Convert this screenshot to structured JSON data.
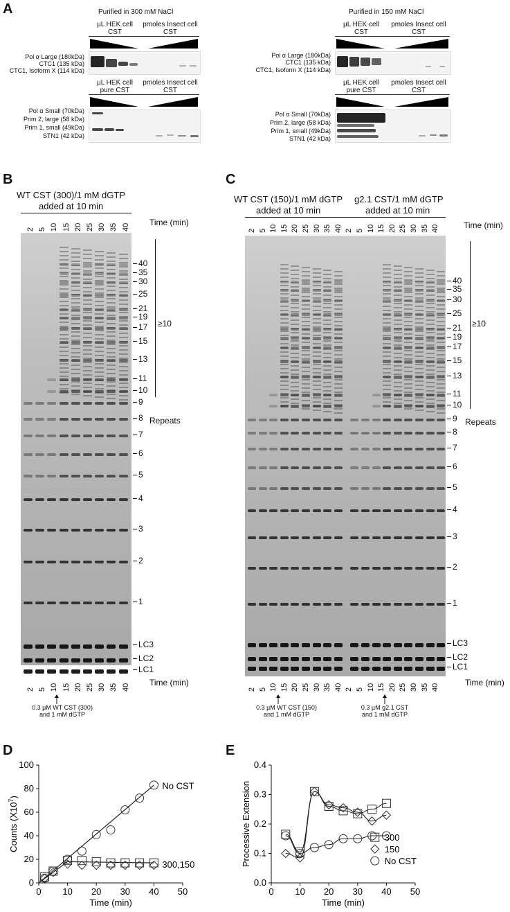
{
  "panels": {
    "A": "A",
    "B": "B",
    "C": "C",
    "D": "D",
    "E": "E"
  },
  "panelA": {
    "left_title": "Purified in 300 mM NaCl",
    "right_title": "Purified in 150 mM NaCl",
    "hek_label_top": "µL HEK cell\nCST",
    "insect_label": "pmoles Insect cell\nCST",
    "hek_label_bottom": "µL HEK cell\npure CST",
    "top_bands": [
      "Pol α Large (180kDa)",
      "CTC1 (135 kDa)",
      "CTC1, Isoform X (114 kDa)"
    ],
    "bottom_bands": [
      "Pol α Small (70kDa)",
      "Prim 2, large (58 kDa)",
      "Prim 1, small (49kDa)",
      "STN1 (42 kDa)"
    ]
  },
  "panelB": {
    "title_line1": "WT CST (300)/1 mM dGTP",
    "title_line2": "added at 10 min",
    "time_label": "Time (min)",
    "lanes": [
      "2",
      "5",
      "10",
      "15",
      "20",
      "25",
      "30",
      "35",
      "40"
    ],
    "size_labels": [
      "40",
      "35",
      "30",
      "25",
      "21",
      "19",
      "17",
      "15",
      "13",
      "11",
      "10",
      "9",
      "8",
      "7",
      "6",
      "5",
      "4",
      "3",
      "2",
      "1",
      "LC3",
      "LC2",
      "LC1"
    ],
    "bracket_label": "≥10",
    "repeats_label": "Repeats",
    "arrow_note": "0.3 µM WT CST (300)\nand 1 mM dGTP"
  },
  "panelC": {
    "title1_line1": "WT CST (150)/1 mM dGTP",
    "title1_line2": "added at 10 min",
    "title2_line1": "g2.1 CST/1 mM dGTP",
    "title2_line2": "added at 10 min",
    "time_label": "Time (min)",
    "lanes": [
      "2",
      "5",
      "10",
      "15",
      "20",
      "25",
      "30",
      "35",
      "40",
      "2",
      "5",
      "10",
      "15",
      "20",
      "25",
      "30",
      "35",
      "40"
    ],
    "size_labels": [
      "40",
      "35",
      "30",
      "25",
      "21",
      "19",
      "17",
      "15",
      "13",
      "11",
      "10",
      "9",
      "8",
      "7",
      "6",
      "5",
      "4",
      "3",
      "2",
      "1",
      "LC3",
      "LC2",
      "LC1"
    ],
    "bracket_label": "≥10",
    "repeats_label": "Repeats",
    "arrow_note1": "0.3 µM WT CST (150)\nand 1 mM dGTP",
    "arrow_note2": "0.3 µM g2.1 CST\nand 1 mM dGTP"
  },
  "chart_data": [
    {
      "type": "scatter",
      "panel": "D",
      "xlabel": "Time (min)",
      "ylabel": "Counts (X10^7)",
      "xlim": [
        0,
        50
      ],
      "ylim": [
        0,
        100
      ],
      "xticks": [
        0,
        10,
        20,
        30,
        40,
        50
      ],
      "yticks": [
        0,
        20,
        40,
        60,
        80,
        100
      ],
      "series": [
        {
          "name": "No CST",
          "marker": "circle",
          "x": [
            2,
            5,
            10,
            15,
            20,
            25,
            30,
            35,
            40
          ],
          "y": [
            4,
            10,
            20,
            27,
            41,
            45,
            62,
            72,
            83
          ]
        },
        {
          "name": "300",
          "marker": "square",
          "x": [
            2,
            5,
            10,
            15,
            20,
            25,
            30,
            35,
            40
          ],
          "y": [
            5,
            10,
            19,
            19,
            18,
            17,
            17,
            17,
            17
          ]
        },
        {
          "name": "150",
          "marker": "diamond",
          "x": [
            2,
            5,
            10,
            15,
            20,
            25,
            30,
            35,
            40
          ],
          "y": [
            4,
            9,
            16,
            15,
            15,
            15,
            15,
            15,
            15
          ]
        }
      ],
      "annotations": [
        "No CST",
        "300,150"
      ]
    },
    {
      "type": "scatter",
      "panel": "E",
      "xlabel": "Time (min)",
      "ylabel": "Processive Extension",
      "xlim": [
        0,
        50
      ],
      "ylim": [
        0,
        0.4
      ],
      "xticks": [
        0,
        10,
        20,
        30,
        40,
        50
      ],
      "yticks": [
        0.0,
        0.1,
        0.2,
        0.3,
        0.4
      ],
      "series": [
        {
          "name": "300",
          "marker": "square",
          "x": [
            5,
            10,
            15,
            20,
            25,
            30,
            35,
            40
          ],
          "y": [
            0.165,
            0.105,
            0.31,
            0.26,
            0.245,
            0.235,
            0.25,
            0.27
          ]
        },
        {
          "name": "150",
          "marker": "diamond",
          "x": [
            5,
            10,
            15,
            20,
            25,
            30,
            35,
            40
          ],
          "y": [
            0.1,
            0.085,
            0.31,
            0.265,
            0.255,
            0.24,
            0.21,
            0.23
          ]
        },
        {
          "name": "No CST",
          "marker": "circle",
          "x": [
            5,
            10,
            15,
            20,
            25,
            30,
            35,
            40
          ],
          "y": [
            0.16,
            0.1,
            0.12,
            0.13,
            0.15,
            0.15,
            0.16,
            0.16
          ]
        }
      ],
      "legend": [
        "300",
        "150",
        "No CST"
      ]
    }
  ]
}
